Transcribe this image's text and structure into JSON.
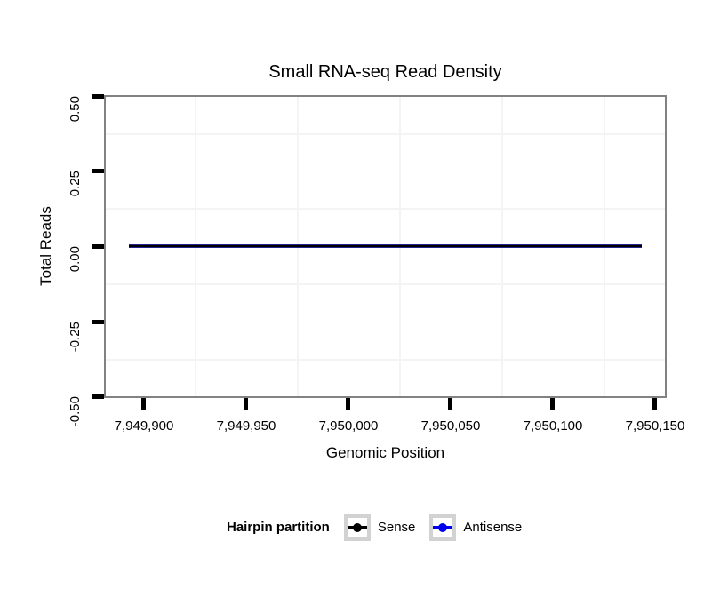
{
  "chart_data": {
    "type": "line",
    "title": "Small RNA-seq Read Density",
    "xlabel": "Genomic Position",
    "ylabel": "Total Reads",
    "x_tick_labels": [
      "7,949,900",
      "7,949,950",
      "7,950,000",
      "7,950,050",
      "7,950,100",
      "7,950,150"
    ],
    "x_tick_values": [
      7949900,
      7949950,
      7950000,
      7950050,
      7950100,
      7950150
    ],
    "y_tick_labels": [
      "0.50",
      "0.25",
      "0.00",
      "-0.25",
      "-0.50"
    ],
    "y_tick_values": [
      0.5,
      0.25,
      0.0,
      -0.25,
      -0.5
    ],
    "xlim": [
      7949881,
      7950156
    ],
    "ylim": [
      -0.5,
      0.5
    ],
    "grid": "faint minor gridlines only (midway between ticks), light gray on white panel, gray panel border",
    "series": [
      {
        "name": "Sense",
        "color": "#000000",
        "points": [
          [
            7949893,
            0
          ],
          [
            7950143,
            0
          ]
        ],
        "note": "flat line at 0, overlaps Antisense"
      },
      {
        "name": "Antisense",
        "color": "#0000ee",
        "points": [
          [
            7949893,
            0
          ],
          [
            7950143,
            0
          ]
        ],
        "note": "flat line at 0, overlaps Sense"
      }
    ],
    "legend": {
      "title": "Hairpin partition",
      "position": "bottom",
      "items": [
        {
          "label": "Sense",
          "color": "#000000"
        },
        {
          "label": "Antisense",
          "color": "#0000ee"
        }
      ]
    }
  },
  "colors": {
    "background": "#ffffff",
    "panel_border": "#828282",
    "gridline": "#f4f4f4",
    "tick": "#000000",
    "antisense_underlay": "#22228c",
    "legend_key_border": "#d2d2d2"
  }
}
